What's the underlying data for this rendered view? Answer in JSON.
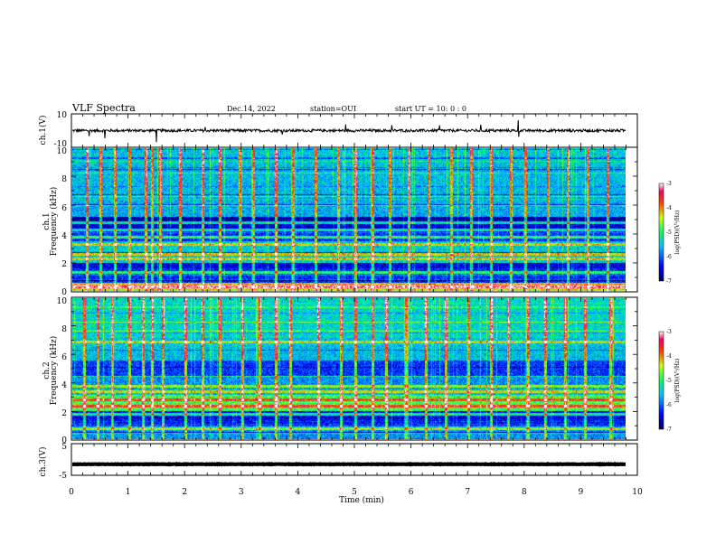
{
  "header": {
    "title": "VLF Spectra",
    "date": "Dec.14, 2022",
    "station": "station=OUI",
    "start": "start UT =  10: 0 : 0"
  },
  "chart_data": [
    {
      "type": "line",
      "panel": "ch1-waveform",
      "ylabel": "ch.1(V)",
      "ylim": [
        -10,
        10
      ],
      "yticks": [
        "10",
        "-10"
      ],
      "xlim": [
        0,
        10
      ],
      "series": [
        {
          "values_mean": 0,
          "data_end_min": 9.8
        }
      ]
    },
    {
      "type": "heatmap",
      "panel": "ch1-spectrogram",
      "ylabel": "ch.1\nFrequency (kHz)",
      "ylim": [
        0,
        10
      ],
      "yticks": [
        "0",
        "2",
        "4",
        "6",
        "8",
        "10"
      ],
      "xlim": [
        0,
        10
      ],
      "colorbar": {
        "label": "log(PSD)(V²/Hz)",
        "range": [
          -7,
          -3
        ],
        "ticks": [
          "-3",
          "-4",
          "-5",
          "-6",
          "-7"
        ]
      },
      "bright_bands_khz": [
        0.3,
        1.3,
        2.3,
        2.6,
        3.3,
        3.8,
        4.3,
        4.8
      ],
      "impulse_columns_min": [
        0.25,
        0.5,
        0.75,
        1.0,
        1.3,
        1.4,
        1.55,
        1.9,
        2.3,
        2.6,
        2.95,
        3.2,
        3.6,
        3.9,
        4.3,
        4.7,
        5.0,
        5.3,
        5.6,
        5.95,
        6.3,
        6.7,
        7.05,
        7.4,
        7.75,
        8.0,
        8.4,
        8.75,
        9.1,
        9.45
      ]
    },
    {
      "type": "heatmap",
      "panel": "ch2-spectrogram",
      "ylabel": "ch.2\nFrequency (kHz)",
      "ylim": [
        0,
        10
      ],
      "yticks": [
        "0",
        "2",
        "4",
        "6",
        "8",
        "10"
      ],
      "xlim": [
        0,
        10
      ],
      "colorbar": {
        "label": "log(PSD)(V²/Hz)",
        "range": [
          -7,
          -3
        ],
        "ticks": [
          "-3",
          "-4",
          "-5",
          "-6",
          "-7"
        ]
      },
      "bright_bands_khz": [
        0.8,
        1.8,
        2.4,
        2.8,
        3.4,
        3.8,
        6.9
      ],
      "impulse_columns_min": [
        0.2,
        0.45,
        0.7,
        1.0,
        1.25,
        1.4,
        1.6,
        2.0,
        2.3,
        2.6,
        3.0,
        3.3,
        3.6,
        3.85,
        4.35,
        4.75,
        5.0,
        5.3,
        5.55,
        5.9,
        6.25,
        6.6,
        7.0,
        7.4,
        7.7,
        8.05,
        8.35,
        8.7,
        9.05,
        9.5
      ]
    },
    {
      "type": "line",
      "panel": "ch3-waveform",
      "ylabel": "ch.3(V)",
      "ylim": [
        -5,
        5
      ],
      "yticks": [
        "5",
        "-5"
      ],
      "xlim": [
        0,
        10
      ],
      "series": [
        {
          "values_mean": -1.5,
          "data_end_min": 9.8
        }
      ]
    }
  ],
  "xaxis": {
    "label": "Time (min)",
    "ticks": [
      "0",
      "1",
      "2",
      "3",
      "4",
      "5",
      "6",
      "7",
      "8",
      "9",
      "10"
    ]
  }
}
